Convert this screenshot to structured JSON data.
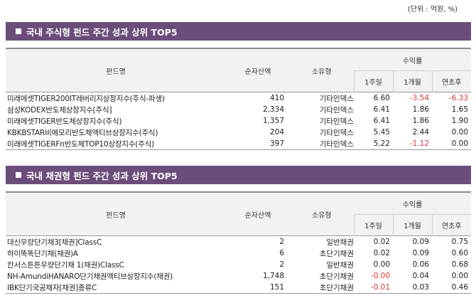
{
  "unit_note": "(단위 : 억원, %)",
  "equity": {
    "title": "국내 주식형 펀드 주간 성과 상위 TOP5",
    "headers": {
      "name": "펀드명",
      "asset": "순자산액",
      "type": "소유형",
      "returns": "수익률",
      "w1": "1주일",
      "m1": "1개월",
      "ytd": "연초후"
    },
    "rows": [
      {
        "name": "미래에셋TIGER200IT레버리지상장지수(주식-파생)",
        "asset": "410",
        "type": "기타인덱스",
        "w1": "6.60",
        "m1": "-3.54",
        "ytd": "-6.33"
      },
      {
        "name": "삼성KODEX반도체상장지수[주식]",
        "asset": "2,334",
        "type": "기타인덱스",
        "w1": "6.41",
        "m1": "1.86",
        "ytd": "1.65"
      },
      {
        "name": "미래에셋TIGER반도체상장지수(주식)",
        "asset": "1,357",
        "type": "기타인덱스",
        "w1": "6.41",
        "m1": "1.86",
        "ytd": "1.90"
      },
      {
        "name": "KBKBSTAR비메모리반도체액티브상장지수(주식)",
        "asset": "204",
        "type": "기타인덱스",
        "w1": "5.45",
        "m1": "2.44",
        "ytd": "0.00"
      },
      {
        "name": "미래에셋TIGERFn반도체TOP10상장지수(주식)",
        "asset": "397",
        "type": "기타인덱스",
        "w1": "5.22",
        "m1": "-1.12",
        "ytd": "0.00"
      }
    ]
  },
  "bond": {
    "title": "국내 채권형 펀드 주간 성과 상위 TOP5",
    "headers": {
      "name": "펀드명",
      "asset": "순자산액",
      "type": "소유형",
      "returns": "수익률",
      "w1": "1주일",
      "m1": "1개월",
      "ytd": "연초후"
    },
    "rows": [
      {
        "name": "대신우량단기채3[채권]ClassC",
        "asset": "2",
        "type": "일반채권",
        "w1": "0.02",
        "m1": "0.09",
        "ytd": "0.75"
      },
      {
        "name": "하이똑똑단기채(채권)A",
        "asset": "6",
        "type": "초단기채권",
        "w1": "0.02",
        "m1": "0.09",
        "ytd": "0.60"
      },
      {
        "name": "칸서스튼튼우량단기채 1(채권)ClassC",
        "asset": "2",
        "type": "일반채권",
        "w1": "0.00",
        "m1": "0.06",
        "ytd": "0.68"
      },
      {
        "name": "NH-AmundiHANARO단기채권액티브상장지수(채권)",
        "asset": "1,748",
        "type": "초단기채권",
        "w1": "-0.00",
        "m1": "0.04",
        "ytd": "0.00"
      },
      {
        "name": "IBK단기국공채자[채권]종류C",
        "asset": "151",
        "type": "초단기채권",
        "w1": "-0.01",
        "m1": "0.03",
        "ytd": "0.46"
      }
    ]
  },
  "colors": {
    "banner": "#6b4d7b",
    "negative": "#d9343a",
    "header_bg": "#f2f2f2"
  }
}
